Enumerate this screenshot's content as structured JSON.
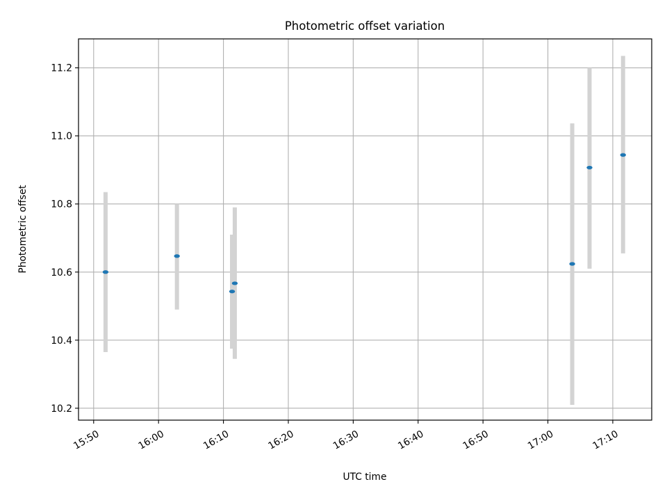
{
  "chart_data": {
    "type": "scatter",
    "title": "Photometric offset variation",
    "xlabel": "UTC time",
    "ylabel": "Photometric offset",
    "x_format": "time HH:MM (UTC)",
    "xlim": [
      "15:47:40",
      "17:16:00"
    ],
    "ylim": [
      10.165,
      11.285
    ],
    "x_ticks": [
      "15:50",
      "16:00",
      "16:10",
      "16:20",
      "16:30",
      "16:40",
      "16:50",
      "17:00",
      "17:10"
    ],
    "y_ticks": [
      "10.2",
      "10.4",
      "10.6",
      "10.8",
      "11.0",
      "11.2"
    ],
    "grid": true,
    "marker_color": "#1f77b4",
    "errorbar_color": "#d3d3d3",
    "points": [
      {
        "x": "15:51:50",
        "y": 10.6,
        "yerr_low": 10.365,
        "yerr_high": 10.835
      },
      {
        "x": "16:02:50",
        "y": 10.647,
        "yerr_low": 10.49,
        "yerr_high": 10.8
      },
      {
        "x": "16:11:20",
        "y": 10.543,
        "yerr_low": 10.375,
        "yerr_high": 10.71
      },
      {
        "x": "16:11:45",
        "y": 10.567,
        "yerr_low": 10.345,
        "yerr_high": 10.79
      },
      {
        "x": "17:03:45",
        "y": 10.624,
        "yerr_low": 10.21,
        "yerr_high": 11.037
      },
      {
        "x": "17:06:25",
        "y": 10.907,
        "yerr_low": 10.61,
        "yerr_high": 11.2
      },
      {
        "x": "17:11:35",
        "y": 10.944,
        "yerr_low": 10.655,
        "yerr_high": 11.235
      }
    ]
  }
}
